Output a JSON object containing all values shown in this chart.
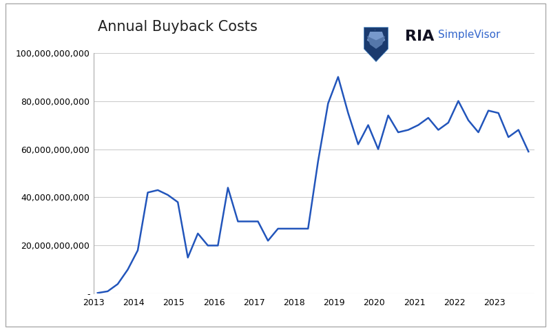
{
  "title": "Annual Buyback Costs",
  "line_color": "#2255bb",
  "line_width": 1.8,
  "background_color": "#ffffff",
  "grid_color": "#cccccc",
  "border_color": "#aaaaaa",
  "x_values": [
    2013.1,
    2013.35,
    2013.6,
    2013.85,
    2014.1,
    2014.35,
    2014.6,
    2014.85,
    2015.1,
    2015.35,
    2015.6,
    2015.85,
    2016.1,
    2016.35,
    2016.6,
    2016.85,
    2017.1,
    2017.35,
    2017.6,
    2017.85,
    2018.1,
    2018.35,
    2018.6,
    2018.85,
    2019.1,
    2019.35,
    2019.6,
    2019.85,
    2020.1,
    2020.35,
    2020.6,
    2020.85,
    2021.1,
    2021.35,
    2021.6,
    2021.85,
    2022.1,
    2022.35,
    2022.6,
    2022.85,
    2023.1,
    2023.35,
    2023.6,
    2023.85
  ],
  "y_values": [
    300000000.0,
    1000000000.0,
    4000000000.0,
    10000000000.0,
    18000000000.0,
    42000000000.0,
    43000000000.0,
    41000000000.0,
    38000000000.0,
    15000000000.0,
    25000000000.0,
    20000000000.0,
    20000000000.0,
    44000000000.0,
    30000000000.0,
    30000000000.0,
    30000000000.0,
    22000000000.0,
    27000000000.0,
    27000000000.0,
    27000000000.0,
    27000000000.0,
    55000000000.0,
    79000000000.0,
    90000000000.0,
    75000000000.0,
    62000000000.0,
    70000000000.0,
    60000000000.0,
    74000000000.0,
    67000000000.0,
    68000000000.0,
    70000000000.0,
    73000000000.0,
    68000000000.0,
    71000000000.0,
    80000000000.0,
    72000000000.0,
    67000000000.0,
    76000000000.0,
    75000000000.0,
    65000000000.0,
    68000000000.0,
    59000000000.0
  ],
  "ylim": [
    0,
    100000000000.0
  ],
  "xlim": [
    2013,
    2024
  ],
  "yticks": [
    0,
    20000000000,
    40000000000,
    60000000000,
    80000000000,
    100000000000
  ],
  "xticks": [
    2013,
    2014,
    2015,
    2016,
    2017,
    2018,
    2019,
    2020,
    2021,
    2022,
    2023
  ],
  "title_fontsize": 15,
  "tick_fontsize": 9,
  "logo_RIA_color": "#111111",
  "logo_simple_color": "#3366cc",
  "logo_fontsize_RIA": 16,
  "logo_fontsize_simple": 11
}
